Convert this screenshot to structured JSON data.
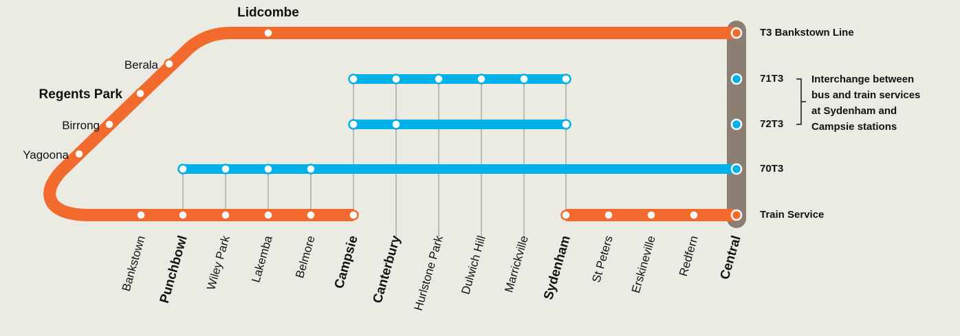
{
  "top_station": "Lidcombe",
  "branch_stations": [
    "Berala",
    "Regents Park",
    "Birrong",
    "Yagoona"
  ],
  "stations": [
    "Bankstown",
    "Punchbowl",
    "Wiley Park",
    "Lakemba",
    "Belmore",
    "Campsie",
    "Canterbury",
    "Hurlstone Park",
    "Dulwich Hill",
    "Marrickville",
    "Sydenham",
    "St Peters",
    "Erskineville",
    "Redfern",
    "Central"
  ],
  "lines": [
    "T3 Bankstown Line",
    "71T3",
    "72T3",
    "70T3",
    "Train Service"
  ],
  "note": [
    "Interchange between",
    "bus and train services",
    "at Sydenham and",
    "Campsie stations"
  ]
}
